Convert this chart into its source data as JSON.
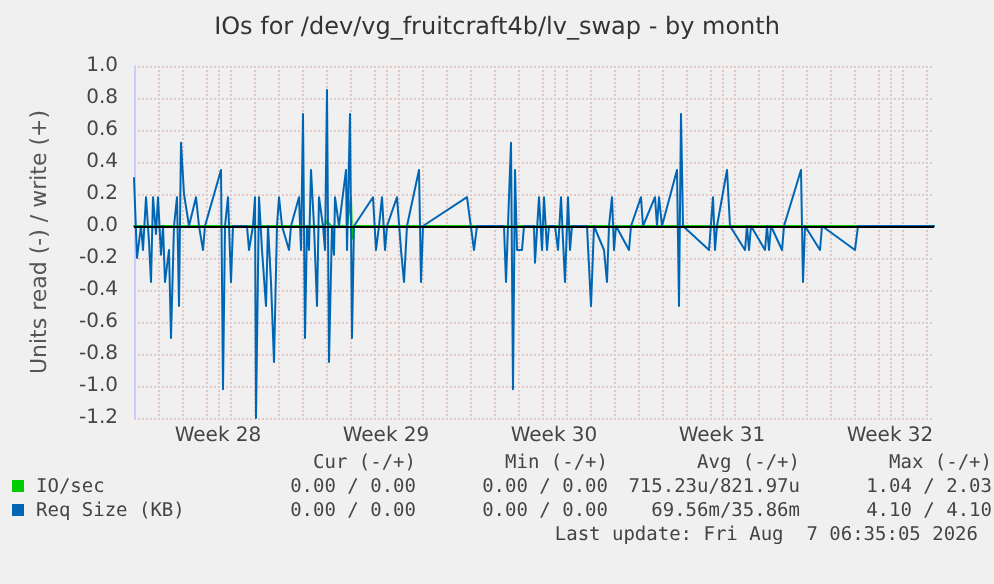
{
  "chart_data": {
    "type": "line",
    "title": "IOs for /dev/vg_fruitcraft4b/lv_swap - by month",
    "ylabel": "Units read (-) / write (+)",
    "xlim": [
      "2026-07-06T00:00",
      "2026-08-08T08:00"
    ],
    "xticks": [
      {
        "value": "2026-07-07T00:00",
        "label": null
      },
      {
        "value": "2026-07-08T00:00",
        "label": null
      },
      {
        "value": "2026-07-09T00:00",
        "label": null
      },
      {
        "value": "2026-07-09T12:00",
        "label": "Week 28"
      },
      {
        "value": "2026-07-10T00:00",
        "label": null
      },
      {
        "value": "2026-07-11T00:00",
        "label": null
      },
      {
        "value": "2026-07-12T00:00",
        "label": null
      },
      {
        "value": "2026-07-13T00:00",
        "label": null
      },
      {
        "value": "2026-07-14T00:00",
        "label": null
      },
      {
        "value": "2026-07-15T00:00",
        "label": null
      },
      {
        "value": "2026-07-16T00:00",
        "label": null
      },
      {
        "value": "2026-07-16T12:00",
        "label": "Week 29"
      },
      {
        "value": "2026-07-17T00:00",
        "label": null
      },
      {
        "value": "2026-07-18T00:00",
        "label": null
      },
      {
        "value": "2026-07-19T00:00",
        "label": null
      },
      {
        "value": "2026-07-20T00:00",
        "label": null
      },
      {
        "value": "2026-07-21T00:00",
        "label": null
      },
      {
        "value": "2026-07-22T00:00",
        "label": null
      },
      {
        "value": "2026-07-23T00:00",
        "label": null
      },
      {
        "value": "2026-07-23T12:00",
        "label": "Week 30"
      },
      {
        "value": "2026-07-24T00:00",
        "label": null
      },
      {
        "value": "2026-07-25T00:00",
        "label": null
      },
      {
        "value": "2026-07-26T00:00",
        "label": null
      },
      {
        "value": "2026-07-27T00:00",
        "label": null
      },
      {
        "value": "2026-07-28T00:00",
        "label": null
      },
      {
        "value": "2026-07-29T00:00",
        "label": null
      },
      {
        "value": "2026-07-30T00:00",
        "label": null
      },
      {
        "value": "2026-07-30T12:00",
        "label": "Week 31"
      },
      {
        "value": "2026-07-31T00:00",
        "label": null
      },
      {
        "value": "2026-08-01T00:00",
        "label": null
      },
      {
        "value": "2026-08-02T00:00",
        "label": null
      },
      {
        "value": "2026-08-03T00:00",
        "label": null
      },
      {
        "value": "2026-08-04T00:00",
        "label": null
      },
      {
        "value": "2026-08-05T00:00",
        "label": null
      },
      {
        "value": "2026-08-06T00:00",
        "label": null
      },
      {
        "value": "2026-08-06T12:00",
        "label": "Week 32"
      },
      {
        "value": "2026-08-07T00:00",
        "label": null
      },
      {
        "value": "2026-08-08T00:00",
        "label": null
      }
    ],
    "ylim": [
      -1.2,
      1.0
    ],
    "yticks": [
      -1.2,
      {
        "value": -1,
        "label": "-1.0"
      },
      -0.8,
      -0.6,
      -0.4,
      -0.2,
      {
        "value": 0,
        "label": "0.0"
      },
      0.2,
      0.4,
      0.6,
      0.8,
      {
        "value": 1,
        "label": "1.0"
      }
    ],
    "grid": true,
    "legend": "bottom",
    "marker": "none",
    "line_style": "solid",
    "ref_lines": [
      {
        "axis": "y",
        "value": 0,
        "label": null,
        "color": "#000000"
      }
    ],
    "series": [
      {
        "name": "IO/sec",
        "color": "#00cc00",
        "x": [
          "2026-07-06T00:00",
          "2026-07-13T22:00",
          "2026-07-14T01:00",
          "2026-07-14T05:00",
          "2026-07-14T21:00",
          "2026-07-15T01:00",
          "2026-07-15T02:00",
          "2026-07-15T04:00",
          "2026-08-08T08:00"
        ],
        "values": [
          0,
          0,
          0.03,
          0,
          0,
          0.18,
          -0.08,
          0,
          0
        ]
      },
      {
        "name": "Req Size (KB)",
        "color": "#0066b3",
        "x": [
          "2026-07-06T00:00",
          "2026-07-06T03:00",
          "2026-07-06T07:00",
          "2026-07-06T09:00",
          "2026-07-06T12:00",
          "2026-07-06T15:00",
          "2026-07-06T17:00",
          "2026-07-06T19:00",
          "2026-07-06T22:00",
          "2026-07-07T00:00",
          "2026-07-07T03:00",
          "2026-07-07T05:00",
          "2026-07-07T07:00",
          "2026-07-07T11:00",
          "2026-07-07T13:00",
          "2026-07-07T16:00",
          "2026-07-07T19:00",
          "2026-07-07T21:00",
          "2026-07-07T23:00",
          "2026-07-08T02:00",
          "2026-07-08T07:00",
          "2026-07-08T14:00",
          "2026-07-08T17:00",
          "2026-07-08T21:00",
          "2026-07-08T23:00",
          "2026-07-09T15:00",
          "2026-07-09T17:00",
          "2026-07-09T19:00",
          "2026-07-09T22:00",
          "2026-07-10T01:00",
          "2026-07-10T03:00",
          "2026-07-10T17:00",
          "2026-07-10T19:00",
          "2026-07-10T23:00",
          "2026-07-11T01:00",
          "2026-07-11T02:00",
          "2026-07-11T05:00",
          "2026-07-11T08:00",
          "2026-07-11T12:00",
          "2026-07-11T14:00",
          "2026-07-11T17:00",
          "2026-07-11T20:00",
          "2026-07-11T23:00",
          "2026-07-12T01:00",
          "2026-07-12T04:00",
          "2026-07-12T11:00",
          "2026-07-12T13:00",
          "2026-07-12T21:00",
          "2026-07-12T23:00",
          "2026-07-13T01:00",
          "2026-07-13T03:00",
          "2026-07-13T05:00",
          "2026-07-13T07:00",
          "2026-07-13T09:00",
          "2026-07-13T12:00",
          "2026-07-13T15:00",
          "2026-07-13T17:00",
          "2026-07-13T21:00",
          "2026-07-13T23:00",
          "2026-07-14T01:00",
          "2026-07-14T03:00",
          "2026-07-14T06:00",
          "2026-07-14T08:00",
          "2026-07-14T09:00",
          "2026-07-14T13:00",
          "2026-07-14T20:00",
          "2026-07-14T21:00",
          "2026-07-15T00:00",
          "2026-07-15T02:00",
          "2026-07-15T04:00",
          "2026-07-15T23:00",
          "2026-07-16T02:00",
          "2026-07-16T05:00",
          "2026-07-16T08:00",
          "2026-07-16T11:00",
          "2026-07-16T13:00",
          "2026-07-16T23:00",
          "2026-07-17T03:00",
          "2026-07-17T06:00",
          "2026-07-17T09:00",
          "2026-07-17T21:00",
          "2026-07-17T23:00",
          "2026-07-18T01:00",
          "2026-07-19T21:00",
          "2026-07-20T04:00",
          "2026-07-20T07:00",
          "2026-07-21T10:00",
          "2026-07-21T12:00",
          "2026-07-21T15:00",
          "2026-07-21T17:00",
          "2026-07-21T19:00",
          "2026-07-21T21:00",
          "2026-07-21T23:00",
          "2026-07-22T04:00",
          "2026-07-22T06:00",
          "2026-07-22T16:00",
          "2026-07-22T17:00",
          "2026-07-22T21:00",
          "2026-07-23T00:00",
          "2026-07-23T02:00",
          "2026-07-23T05:00",
          "2026-07-23T07:00",
          "2026-07-23T13:00",
          "2026-07-23T16:00",
          "2026-07-23T19:00",
          "2026-07-23T23:00",
          "2026-07-24T02:00",
          "2026-07-24T04:00",
          "2026-07-24T06:00",
          "2026-07-24T21:00",
          "2026-07-25T01:00",
          "2026-07-25T04:00",
          "2026-07-25T14:00",
          "2026-07-25T17:00",
          "2026-07-25T19:00",
          "2026-07-25T22:00",
          "2026-07-26T00:00",
          "2026-07-26T02:00",
          "2026-07-26T15:00",
          "2026-07-26T17:00",
          "2026-07-27T03:00",
          "2026-07-27T05:00",
          "2026-07-27T17:00",
          "2026-07-27T19:00",
          "2026-07-27T21:00",
          "2026-07-28T00:00",
          "2026-07-28T15:00",
          "2026-07-28T17:00",
          "2026-07-28T19:00",
          "2026-07-28T21:00",
          "2026-07-29T23:00",
          "2026-07-30T03:00",
          "2026-07-30T05:00",
          "2026-07-30T07:00",
          "2026-07-30T17:00",
          "2026-07-30T20:00",
          "2026-07-31T11:00",
          "2026-07-31T13:00",
          "2026-07-31T15:00",
          "2026-07-31T17:00",
          "2026-08-01T07:00",
          "2026-08-01T09:00",
          "2026-08-01T11:00",
          "2026-08-01T13:00",
          "2026-08-02T00:00",
          "2026-08-02T02:00",
          "2026-08-02T19:00",
          "2026-08-02T21:00",
          "2026-08-02T23:00",
          "2026-08-03T14:00",
          "2026-08-03T16:00",
          "2026-08-05T01:00",
          "2026-08-05T04:00",
          "2026-08-08T08:00"
        ],
        "values": [
          0.3,
          -0.2,
          0,
          -0.15,
          0.18,
          -0.1,
          -0.35,
          0.18,
          -0.05,
          0.18,
          -0.18,
          0,
          -0.35,
          -0.15,
          -0.7,
          0,
          0.18,
          -0.5,
          0.52,
          0.2,
          0,
          0.18,
          0,
          -0.15,
          0,
          0.35,
          -1.02,
          0,
          0.18,
          -0.35,
          0,
          0,
          -0.15,
          0,
          0.18,
          -1.2,
          0.18,
          -0.15,
          -0.5,
          0,
          -0.35,
          -0.85,
          0,
          0.18,
          0,
          -0.15,
          0,
          0.18,
          -0.15,
          0.7,
          -0.7,
          0,
          -0.15,
          0.35,
          0,
          -0.5,
          0.18,
          0,
          -0.15,
          0.85,
          -0.85,
          0,
          -0.18,
          0.18,
          0,
          0.35,
          -0.15,
          0.7,
          -0.7,
          0,
          0.18,
          -0.15,
          0,
          0.18,
          -0.15,
          0,
          0.18,
          -0.15,
          -0.35,
          0,
          0.35,
          -0.35,
          0,
          0.18,
          -0.15,
          0,
          0,
          -0.35,
          0.18,
          0.52,
          -1.02,
          0.35,
          -0.15,
          -0.15,
          0,
          0,
          -0.23,
          0.18,
          -0.15,
          0.18,
          -0.15,
          0,
          0,
          -0.15,
          0.18,
          -0.35,
          0.18,
          -0.15,
          0,
          0,
          -0.5,
          0,
          -0.15,
          -0.35,
          0,
          0.18,
          -0.15,
          0,
          -0.15,
          0,
          0.18,
          0,
          0.18,
          0,
          0.18,
          0,
          0.35,
          -0.5,
          0.7,
          0,
          -0.15,
          0.18,
          -0.15,
          0,
          0.35,
          0,
          -0.15,
          0,
          -0.15,
          0,
          -0.15,
          0,
          -0.15,
          0,
          -0.15,
          0,
          0.35,
          -0.35,
          0,
          -0.15,
          0,
          -0.15,
          0,
          0
        ]
      }
    ],
    "annotations": [
      "Cur (-/+)",
      "Min (-/+)",
      "Avg (-/+)",
      "Max (-/+)",
      "0.00 / 0.00",
      "0.00 / 0.00",
      "715.23u/821.97u",
      "1.04 / 2.03",
      "0.00 / 0.00",
      "0.00 / 0.00",
      "69.56m/35.86m",
      "4.10 / 4.10",
      "Last update: Fri Aug  7 06:35:05 2026"
    ]
  }
}
